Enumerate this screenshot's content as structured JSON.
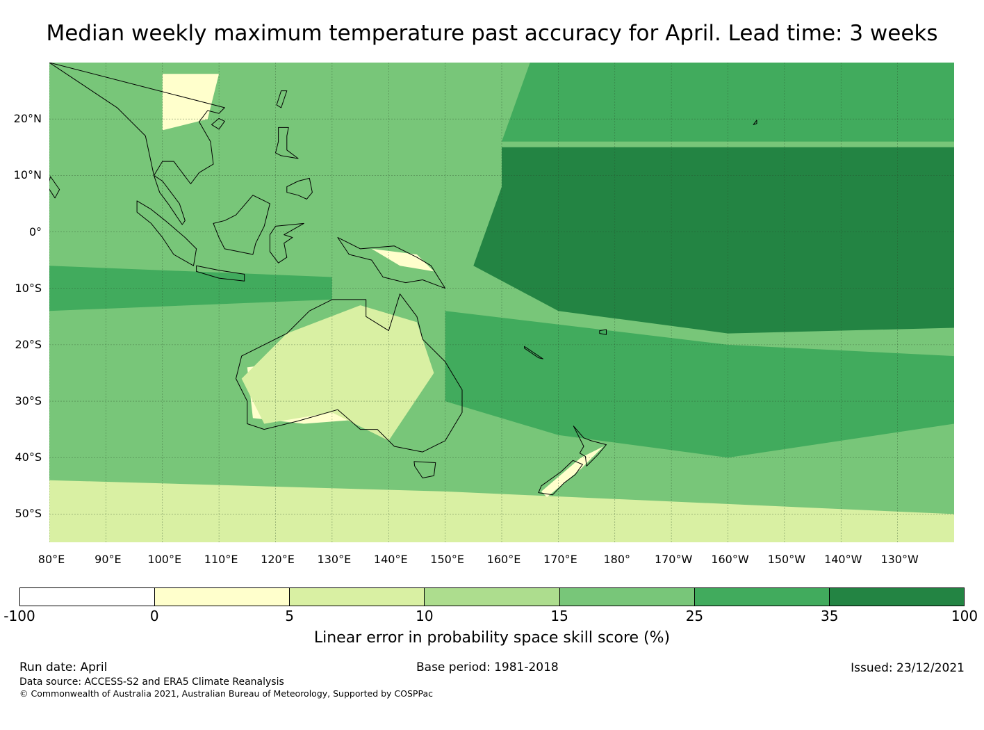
{
  "title": "Median weekly maximum temperature past accuracy for April. Lead time: 3 weeks",
  "map": {
    "extent": {
      "lon_min": 80,
      "lon_max": 240,
      "lat_min": -55,
      "lat_max": 30
    },
    "lat_labels": [
      {
        "lat": 20,
        "text": "20°N"
      },
      {
        "lat": 10,
        "text": "10°N"
      },
      {
        "lat": 0,
        "text": "0°"
      },
      {
        "lat": -10,
        "text": "10°S"
      },
      {
        "lat": -20,
        "text": "20°S"
      },
      {
        "lat": -30,
        "text": "30°S"
      },
      {
        "lat": -40,
        "text": "40°S"
      },
      {
        "lat": -50,
        "text": "50°S"
      }
    ],
    "lon_labels": [
      {
        "lon": 80,
        "text": "80°E"
      },
      {
        "lon": 90,
        "text": "90°E"
      },
      {
        "lon": 100,
        "text": "100°E"
      },
      {
        "lon": 110,
        "text": "110°E"
      },
      {
        "lon": 120,
        "text": "120°E"
      },
      {
        "lon": 130,
        "text": "130°E"
      },
      {
        "lon": 140,
        "text": "140°E"
      },
      {
        "lon": 150,
        "text": "150°E"
      },
      {
        "lon": 160,
        "text": "160°E"
      },
      {
        "lon": 170,
        "text": "170°E"
      },
      {
        "lon": 180,
        "text": "180°"
      },
      {
        "lon": 190,
        "text": "170°W"
      },
      {
        "lon": 200,
        "text": "160°W"
      },
      {
        "lon": 210,
        "text": "150°W"
      },
      {
        "lon": 220,
        "text": "140°W"
      },
      {
        "lon": 230,
        "text": "130°W"
      }
    ],
    "regions": [
      {
        "name": "equatorial-pacific-high-skill",
        "level": 6,
        "points": [
          [
            160,
            15
          ],
          [
            240,
            15
          ],
          [
            240,
            -17
          ],
          [
            200,
            -18
          ],
          [
            170,
            -14
          ],
          [
            155,
            -6
          ],
          [
            160,
            8
          ]
        ]
      },
      {
        "name": "north-pacific-band",
        "level": 5,
        "points": [
          [
            165,
            30
          ],
          [
            240,
            30
          ],
          [
            240,
            16
          ],
          [
            160,
            16
          ]
        ]
      },
      {
        "name": "south-pacific-band",
        "level": 5,
        "points": [
          [
            150,
            -14
          ],
          [
            200,
            -20
          ],
          [
            240,
            -22
          ],
          [
            240,
            -34
          ],
          [
            200,
            -40
          ],
          [
            170,
            -36
          ],
          [
            150,
            -30
          ]
        ]
      },
      {
        "name": "australia-interior",
        "level": 1,
        "points": [
          [
            115,
            -24
          ],
          [
            130,
            -22
          ],
          [
            140,
            -28
          ],
          [
            138,
            -33
          ],
          [
            125,
            -34
          ],
          [
            116,
            -33
          ]
        ]
      },
      {
        "name": "australia-north",
        "level": 2,
        "points": [
          [
            122,
            -18
          ],
          [
            135,
            -13
          ],
          [
            145,
            -16
          ],
          [
            148,
            -25
          ],
          [
            140,
            -37
          ],
          [
            130,
            -32
          ],
          [
            118,
            -34
          ],
          [
            114,
            -26
          ]
        ]
      },
      {
        "name": "indian-ocean-band",
        "level": 5,
        "points": [
          [
            80,
            -6
          ],
          [
            130,
            -8
          ],
          [
            130,
            -12
          ],
          [
            80,
            -14
          ]
        ]
      },
      {
        "name": "southern-ocean-light",
        "level": 2,
        "points": [
          [
            80,
            -44
          ],
          [
            150,
            -46
          ],
          [
            240,
            -50
          ],
          [
            240,
            -55
          ],
          [
            80,
            -55
          ]
        ]
      },
      {
        "name": "new-guinea-light",
        "level": 1,
        "points": [
          [
            137,
            -3
          ],
          [
            145,
            -4
          ],
          [
            148,
            -7
          ],
          [
            142,
            -6
          ]
        ]
      },
      {
        "name": "se-asia-light",
        "level": 1,
        "points": [
          [
            100,
            28
          ],
          [
            110,
            28
          ],
          [
            108,
            20
          ],
          [
            100,
            18
          ]
        ]
      },
      {
        "name": "new-zealand-light",
        "level": 1,
        "points": [
          [
            167,
            -46
          ],
          [
            174,
            -40
          ],
          [
            178,
            -38
          ],
          [
            174,
            -42
          ],
          [
            168,
            -47
          ]
        ]
      }
    ],
    "land_outlines": [
      {
        "name": "australia",
        "points": [
          [
            114,
            -22
          ],
          [
            122,
            -18
          ],
          [
            126,
            -14
          ],
          [
            130,
            -12
          ],
          [
            136,
            -12
          ],
          [
            136,
            -15
          ],
          [
            140,
            -17.5
          ],
          [
            142,
            -11
          ],
          [
            145,
            -15
          ],
          [
            146,
            -19
          ],
          [
            150,
            -23
          ],
          [
            153,
            -28
          ],
          [
            153,
            -32
          ],
          [
            150,
            -37
          ],
          [
            146,
            -39
          ],
          [
            141,
            -38
          ],
          [
            138,
            -35
          ],
          [
            135,
            -35
          ],
          [
            131,
            -31.5
          ],
          [
            124,
            -33.5
          ],
          [
            118,
            -35
          ],
          [
            115,
            -34
          ],
          [
            115,
            -30
          ],
          [
            113,
            -26
          ]
        ]
      },
      {
        "name": "tasmania",
        "points": [
          [
            144.5,
            -40.7
          ],
          [
            148.3,
            -40.9
          ],
          [
            148,
            -43.2
          ],
          [
            146,
            -43.6
          ],
          [
            144.6,
            -41.5
          ]
        ]
      },
      {
        "name": "new-guinea",
        "points": [
          [
            131,
            -1
          ],
          [
            135,
            -3
          ],
          [
            141,
            -2.5
          ],
          [
            145,
            -4.5
          ],
          [
            147.5,
            -6
          ],
          [
            150,
            -10
          ],
          [
            146,
            -8.5
          ],
          [
            143,
            -9
          ],
          [
            139,
            -8
          ],
          [
            137,
            -5
          ],
          [
            133,
            -4
          ]
        ]
      },
      {
        "name": "borneo",
        "points": [
          [
            109,
            1.5
          ],
          [
            111,
            2
          ],
          [
            113,
            3
          ],
          [
            116,
            6.5
          ],
          [
            119,
            5
          ],
          [
            118,
            1
          ],
          [
            116.5,
            -2
          ],
          [
            116,
            -4
          ],
          [
            111,
            -3
          ],
          [
            110,
            -1
          ]
        ]
      },
      {
        "name": "sumatra",
        "points": [
          [
            95.5,
            5.5
          ],
          [
            98,
            4
          ],
          [
            100.5,
            2
          ],
          [
            104,
            -1
          ],
          [
            106,
            -3
          ],
          [
            105.5,
            -6
          ],
          [
            102,
            -4
          ],
          [
            100,
            -1
          ],
          [
            98,
            1.5
          ],
          [
            95.5,
            3.5
          ]
        ]
      },
      {
        "name": "java",
        "points": [
          [
            106,
            -6
          ],
          [
            110,
            -6.8
          ],
          [
            114.5,
            -7.5
          ],
          [
            114.5,
            -8.7
          ],
          [
            110,
            -8.2
          ],
          [
            106,
            -7
          ]
        ]
      },
      {
        "name": "sulawesi",
        "points": [
          [
            119,
            -0.5
          ],
          [
            120,
            1
          ],
          [
            125,
            1.5
          ],
          [
            121.5,
            -0.5
          ],
          [
            123,
            -1
          ],
          [
            121.5,
            -2
          ],
          [
            122,
            -4.5
          ],
          [
            120.5,
            -5.5
          ],
          [
            119,
            -3.5
          ]
        ]
      },
      {
        "name": "malay-peninsula",
        "points": [
          [
            98.5,
            10
          ],
          [
            99.5,
            7
          ],
          [
            101,
            5
          ],
          [
            103.5,
            1.3
          ],
          [
            104,
            2
          ],
          [
            103,
            5
          ],
          [
            101.5,
            7
          ],
          [
            100,
            9
          ]
        ]
      },
      {
        "name": "indochina",
        "points": [
          [
            92,
            22
          ],
          [
            97,
            17
          ],
          [
            98.5,
            10
          ],
          [
            100,
            12.5
          ],
          [
            102,
            12.5
          ],
          [
            105,
            8.5
          ],
          [
            106.5,
            10.5
          ],
          [
            109,
            12
          ],
          [
            108.5,
            16
          ],
          [
            106.5,
            19.5
          ],
          [
            108,
            21.5
          ],
          [
            110,
            21
          ],
          [
            111,
            22
          ],
          [
            80,
            30
          ]
        ]
      },
      {
        "name": "luzon",
        "points": [
          [
            120,
            14
          ],
          [
            120.5,
            16
          ],
          [
            120.5,
            18.5
          ],
          [
            122.3,
            18.5
          ],
          [
            122,
            17
          ],
          [
            122,
            14.5
          ],
          [
            124,
            13
          ],
          [
            121,
            13.5
          ]
        ]
      },
      {
        "name": "mindanao",
        "points": [
          [
            122,
            8
          ],
          [
            124,
            9
          ],
          [
            126,
            9.5
          ],
          [
            126.5,
            7
          ],
          [
            125.5,
            5.8
          ],
          [
            124,
            6.5
          ],
          [
            122,
            7
          ]
        ]
      },
      {
        "name": "taiwan",
        "points": [
          [
            120.2,
            22.5
          ],
          [
            121,
            25
          ],
          [
            122,
            25
          ],
          [
            121,
            22
          ]
        ]
      },
      {
        "name": "hainan",
        "points": [
          [
            108.7,
            19
          ],
          [
            110,
            20.1
          ],
          [
            111,
            19.6
          ],
          [
            110,
            18.2
          ]
        ]
      },
      {
        "name": "nz-north",
        "points": [
          [
            172.7,
            -34.4
          ],
          [
            174.5,
            -36.5
          ],
          [
            175.8,
            -37
          ],
          [
            178.5,
            -37.7
          ],
          [
            177,
            -39.5
          ],
          [
            175,
            -41.5
          ],
          [
            174.8,
            -39.8
          ],
          [
            173.8,
            -39.2
          ],
          [
            174.5,
            -38
          ]
        ]
      },
      {
        "name": "nz-south",
        "points": [
          [
            172.6,
            -40.5
          ],
          [
            174.3,
            -41.2
          ],
          [
            173,
            -43
          ],
          [
            171,
            -44.5
          ],
          [
            169,
            -46.6
          ],
          [
            166.5,
            -46.2
          ],
          [
            167,
            -45
          ],
          [
            170.5,
            -42.5
          ]
        ]
      },
      {
        "name": "new-caledonia",
        "points": [
          [
            164,
            -20.3
          ],
          [
            167.3,
            -22.5
          ],
          [
            166.5,
            -22.3
          ],
          [
            164,
            -20.6
          ]
        ]
      },
      {
        "name": "fiji",
        "points": [
          [
            177.3,
            -17.5
          ],
          [
            178.5,
            -17.3
          ],
          [
            178.5,
            -18.2
          ],
          [
            177.3,
            -18
          ]
        ]
      },
      {
        "name": "hawaii",
        "points": [
          [
            204.5,
            19
          ],
          [
            205.1,
            19.8
          ],
          [
            205.1,
            19.2
          ]
        ]
      },
      {
        "name": "sri-lanka",
        "points": [
          [
            79.7,
            8
          ],
          [
            80.2,
            9.8
          ],
          [
            81.8,
            7.5
          ],
          [
            81,
            6
          ]
        ]
      }
    ]
  },
  "colorbar": {
    "colors": [
      "#ffffff",
      "#ffffcc",
      "#d9f0a3",
      "#addd8e",
      "#78c679",
      "#41ab5d",
      "#238443"
    ],
    "ticks": [
      "-100",
      "0",
      "5",
      "10",
      "15",
      "25",
      "35",
      "100"
    ],
    "label": "Linear error in probability space skill score (%)"
  },
  "footer": {
    "run_date": "Run date: April",
    "base_period": "Base period: 1981-2018",
    "issued": "Issued: 23/12/2021",
    "data_source": "Data source: ACCESS-S2 and ERA5 Climate Reanalysis",
    "copyright": "© Commonwealth of Australia 2021, Australian Bureau of Meteorology, Supported by COSPPac"
  }
}
